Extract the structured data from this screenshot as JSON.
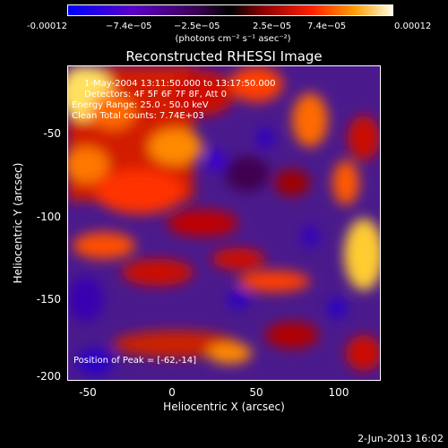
{
  "colorbar": {
    "ticks": [
      "-0.00012",
      "−7.4e−05",
      "−2.5e−05",
      "2.5e−05",
      "7.4e−05",
      "0.00012"
    ],
    "units_label": "(photons cm⁻² s⁻¹ asec⁻²)",
    "colors": [
      "#0000ff",
      "#4b0082",
      "#000000",
      "#cc0000",
      "#ff8c00",
      "#ffffe0"
    ]
  },
  "title": "Reconstructed RHESSI Image",
  "info": {
    "line1": "1-May-2004 13:11:50.000 to 13:17:50.000",
    "line2": "Detectors: 4F 5F 6F 7F 8F, Att 0",
    "line3": "Energy Range: 25.0 - 50.0 keV",
    "line4": "Clean    Total counts: 7.74E+03",
    "peak": "Position of Peak = [-62,-14]"
  },
  "axes": {
    "xlabel": "Heliocentric X (arcsec)",
    "ylabel": "Heliocentric Y (arcsec)",
    "xticks": [
      "-50",
      "0",
      "50",
      "100"
    ],
    "yticks": [
      "-50",
      "-100",
      "-150",
      "-200"
    ]
  },
  "footer": "2-Jun-2013 16:02"
}
